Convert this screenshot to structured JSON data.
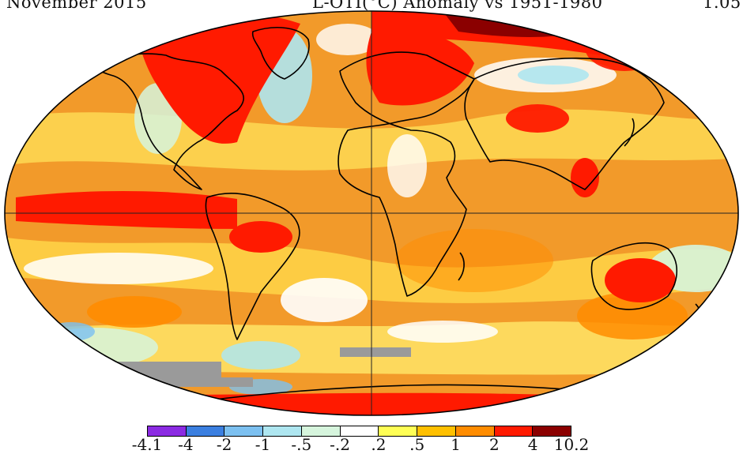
{
  "header": {
    "date": "November 2015",
    "title": "L-OTI(°C) Anomaly vs 1951-1980",
    "global_mean": "1.05"
  },
  "legend": {
    "ticks": [
      "-4.1",
      "-4",
      "-2",
      "-1",
      "-.5",
      "-.2",
      ".2",
      ".5",
      "1",
      "2",
      "4",
      "10.2"
    ],
    "colors": [
      "#8b2be2",
      "#3b7fe0",
      "#7cc0f0",
      "#aee6f0",
      "#d6f5dd",
      "#ffffff",
      "#ffff55",
      "#ffc000",
      "#ff8c00",
      "#ff1a00",
      "#8b0000"
    ]
  },
  "map": {
    "projection": "Robinson",
    "ocean_color": "#f29a2a",
    "missing_data_color": "#9a9a9a",
    "land_outline_color": "#000000"
  }
}
